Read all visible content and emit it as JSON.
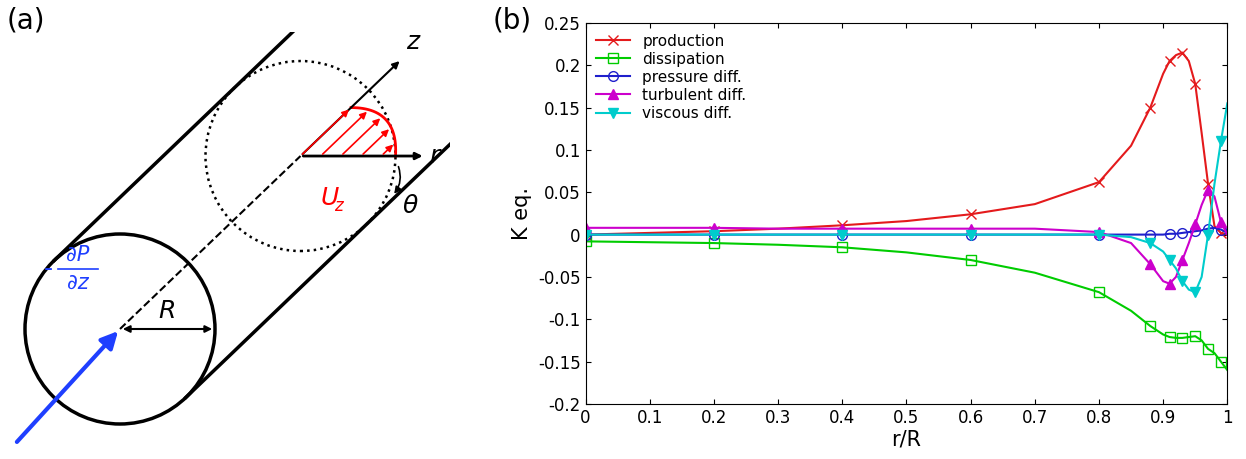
{
  "panel_labels": [
    "(a)",
    "(b)"
  ],
  "diagram": {
    "axis_labels": {
      "z": "z",
      "r": "r",
      "theta": "θ"
    },
    "radius": "R",
    "velocity": {
      "main": "U",
      "sub": "z"
    },
    "pressure_gradient": {
      "sign": "-",
      "numerator": "∂P",
      "denominator": "∂z"
    }
  },
  "chart_data": {
    "type": "line",
    "x_label": "r/R",
    "y_label": "K eq.",
    "x": [
      0,
      0.1,
      0.2,
      0.3,
      0.4,
      0.5,
      0.6,
      0.7,
      0.8,
      0.85,
      0.88,
      0.9,
      0.91,
      0.92,
      0.93,
      0.94,
      0.95,
      0.96,
      0.97,
      0.98,
      0.99,
      1
    ],
    "series": [
      {
        "name": "production",
        "color": "#e41a1c",
        "marker": "x",
        "values": [
          0,
          0.002,
          0.004,
          0.007,
          0.011,
          0.016,
          0.024,
          0.036,
          0.062,
          0.105,
          0.15,
          0.19,
          0.205,
          0.212,
          0.215,
          0.205,
          0.178,
          0.12,
          0.06,
          0.01,
          0.002,
          0
        ]
      },
      {
        "name": "dissipation",
        "color": "#00cc00",
        "marker": "square",
        "values": [
          -0.008,
          -0.009,
          -0.01,
          -0.012,
          -0.015,
          -0.021,
          -0.03,
          -0.045,
          -0.068,
          -0.09,
          -0.108,
          -0.118,
          -0.121,
          -0.122,
          -0.122,
          -0.121,
          -0.12,
          -0.125,
          -0.135,
          -0.14,
          -0.15,
          -0.16
        ]
      },
      {
        "name": "pressure diff.",
        "color": "#1f1fcc",
        "marker": "circle",
        "values": [
          0,
          0,
          0,
          0,
          0,
          0,
          0,
          0,
          0,
          0,
          0,
          0,
          0.001,
          0.001,
          0.002,
          0.003,
          0.004,
          0.005,
          0.007,
          0.008,
          0.006,
          0.002
        ]
      },
      {
        "name": "turbulent diff.",
        "color": "#cc00cc",
        "marker": "triangle_up",
        "values": [
          0.008,
          0.008,
          0.008,
          0.007,
          0.007,
          0.007,
          0.007,
          0.007,
          0.003,
          -0.01,
          -0.035,
          -0.055,
          -0.058,
          -0.05,
          -0.03,
          -0.01,
          0.012,
          0.035,
          0.053,
          0.045,
          0.015,
          0
        ]
      },
      {
        "name": "viscous diff.",
        "color": "#00cccc",
        "marker": "triangle_down",
        "values": [
          0,
          0,
          0,
          0,
          0,
          0,
          0,
          0,
          0,
          -0.003,
          -0.01,
          -0.02,
          -0.03,
          -0.04,
          -0.055,
          -0.065,
          -0.068,
          -0.05,
          0,
          0.06,
          0.11,
          0.155
        ]
      }
    ],
    "xlim": [
      0,
      1
    ],
    "xticks": [
      0,
      0.1,
      0.2,
      0.3,
      0.4,
      0.5,
      0.6,
      0.7,
      0.8,
      0.9,
      1
    ],
    "ylim": [
      -0.2,
      0.25
    ],
    "yticks": [
      -0.2,
      -0.15,
      -0.1,
      -0.05,
      0,
      0.05,
      0.1,
      0.15,
      0.2,
      0.25
    ],
    "legend": "upper left",
    "grid": false
  }
}
